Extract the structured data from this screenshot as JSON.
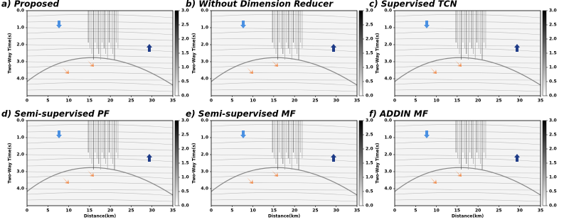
{
  "chart_data": [
    {
      "type": "image",
      "title": "a) Proposed",
      "ylabel": "Two-Way Time(s)",
      "xlim": [
        0,
        35
      ],
      "xticks": [
        0,
        5,
        10,
        15,
        20,
        25,
        30,
        35
      ],
      "ylim": [
        5,
        0
      ],
      "yticks": [
        {
          "value": 0,
          "label": "0.0"
        },
        {
          "value": 1,
          "label": "1.0"
        },
        {
          "value": 2,
          "label": "2.0"
        },
        {
          "value": 3,
          "label": "3.0"
        },
        {
          "value": 4,
          "label": "4.0"
        }
      ],
      "colorbar": {
        "lim": [
          0,
          3
        ],
        "ticks": [
          {
            "value": 0,
            "label": "0.0"
          },
          {
            "value": 0.5,
            "label": "0.5"
          },
          {
            "value": 1,
            "label": "1.0"
          },
          {
            "value": 1.5,
            "label": "1.5"
          },
          {
            "value": 2,
            "label": "2.0"
          },
          {
            "value": 2.5,
            "label": "2.5"
          },
          {
            "value": 3,
            "label": "3.0"
          }
        ]
      }
    },
    {
      "type": "image",
      "title": "b) Without Dimension Reducer",
      "ylabel": "Two-Way Time(s)",
      "xlim": [
        0,
        35
      ],
      "xticks": [
        0,
        5,
        10,
        15,
        20,
        25,
        30,
        35
      ],
      "ylim": [
        5,
        0
      ],
      "yticks": [
        {
          "value": 0,
          "label": "0.0"
        },
        {
          "value": 1,
          "label": "1.0"
        },
        {
          "value": 2,
          "label": "2.0"
        },
        {
          "value": 3,
          "label": "3.0"
        },
        {
          "value": 4,
          "label": "4.0"
        }
      ],
      "colorbar": {
        "lim": [
          0,
          3
        ],
        "ticks": [
          {
            "value": 0,
            "label": "0.0"
          },
          {
            "value": 0.5,
            "label": "0.5"
          },
          {
            "value": 1,
            "label": "1.0"
          },
          {
            "value": 1.5,
            "label": "1.5"
          },
          {
            "value": 2,
            "label": "2.0"
          },
          {
            "value": 2.5,
            "label": "2.5"
          },
          {
            "value": 3,
            "label": "3.0"
          }
        ]
      }
    },
    {
      "type": "image",
      "title": "c) Supervised TCN",
      "ylabel": "Two-Way Time(s)",
      "xlim": [
        0,
        35
      ],
      "xticks": [
        0,
        5,
        10,
        15,
        20,
        25,
        30,
        35
      ],
      "ylim": [
        5,
        0
      ],
      "yticks": [
        {
          "value": 0,
          "label": "0.0"
        },
        {
          "value": 1,
          "label": "1.0"
        },
        {
          "value": 2,
          "label": "2.0"
        },
        {
          "value": 3,
          "label": "3.0"
        },
        {
          "value": 4,
          "label": "4.0"
        }
      ],
      "colorbar": {
        "lim": [
          0,
          3
        ],
        "ticks": [
          {
            "value": 0,
            "label": "0.0"
          },
          {
            "value": 0.5,
            "label": "0.5"
          },
          {
            "value": 1,
            "label": "1.0"
          },
          {
            "value": 1.5,
            "label": "1.5"
          },
          {
            "value": 2,
            "label": "2.0"
          },
          {
            "value": 2.5,
            "label": "2.5"
          },
          {
            "value": 3,
            "label": "3.0"
          }
        ]
      }
    },
    {
      "type": "image",
      "title": "d) Semi-supervised PF",
      "ylabel": "Two-Way Time(s)",
      "xlabel": "Distance(km)",
      "xlim": [
        0,
        35
      ],
      "xticks": [
        0,
        5,
        10,
        15,
        20,
        25,
        30,
        35
      ],
      "ylim": [
        5,
        0
      ],
      "yticks": [
        {
          "value": 0,
          "label": "0.0"
        },
        {
          "value": 1,
          "label": "1.0"
        },
        {
          "value": 2,
          "label": "2.0"
        },
        {
          "value": 3,
          "label": "3.0"
        },
        {
          "value": 4,
          "label": "4.0"
        }
      ],
      "colorbar": {
        "lim": [
          0,
          3
        ],
        "ticks": [
          {
            "value": 0,
            "label": "0.0"
          },
          {
            "value": 0.5,
            "label": "0.5"
          },
          {
            "value": 1,
            "label": "1.0"
          },
          {
            "value": 1.5,
            "label": "1.5"
          },
          {
            "value": 2,
            "label": "2.0"
          },
          {
            "value": 2.5,
            "label": "2.5"
          },
          {
            "value": 3,
            "label": "3.0"
          }
        ]
      }
    },
    {
      "type": "image",
      "title": "e) Semi-supervised MF",
      "ylabel": "Two-Way Time(s)",
      "xlabel": "Distance(km)",
      "xlim": [
        0,
        35
      ],
      "xticks": [
        0,
        5,
        10,
        15,
        20,
        25,
        30,
        35
      ],
      "ylim": [
        5,
        0
      ],
      "yticks": [
        {
          "value": 0,
          "label": "0.0"
        },
        {
          "value": 1,
          "label": "1.0"
        },
        {
          "value": 2,
          "label": "2.0"
        },
        {
          "value": 3,
          "label": "3.0"
        },
        {
          "value": 4,
          "label": "4.0"
        }
      ],
      "colorbar": {
        "lim": [
          0,
          3
        ],
        "ticks": [
          {
            "value": 0,
            "label": "0.0"
          },
          {
            "value": 0.5,
            "label": "0.5"
          },
          {
            "value": 1,
            "label": "1.0"
          },
          {
            "value": 1.5,
            "label": "1.5"
          },
          {
            "value": 2,
            "label": "2.0"
          },
          {
            "value": 2.5,
            "label": "2.5"
          },
          {
            "value": 3,
            "label": "3.0"
          }
        ]
      }
    },
    {
      "type": "image",
      "title": "f) ADDIN MF",
      "ylabel": "Two-Way Time(s)",
      "xlabel": "Distance(km)",
      "xlim": [
        0,
        35
      ],
      "xticks": [
        0,
        5,
        10,
        15,
        20,
        25,
        30,
        35
      ],
      "ylim": [
        5,
        0
      ],
      "yticks": [
        {
          "value": 0,
          "label": "0.0"
        },
        {
          "value": 1,
          "label": "1.0"
        },
        {
          "value": 2,
          "label": "2.0"
        },
        {
          "value": 3,
          "label": "3.0"
        },
        {
          "value": 4,
          "label": "4.0"
        }
      ],
      "colorbar": {
        "lim": [
          0,
          3
        ],
        "ticks": [
          {
            "value": 0,
            "label": "0.0"
          },
          {
            "value": 0.5,
            "label": "0.5"
          },
          {
            "value": 1,
            "label": "1.0"
          },
          {
            "value": 1.5,
            "label": "1.5"
          },
          {
            "value": 2,
            "label": "2.0"
          },
          {
            "value": 2.5,
            "label": "2.5"
          },
          {
            "value": 3,
            "label": "3.0"
          }
        ]
      }
    }
  ]
}
